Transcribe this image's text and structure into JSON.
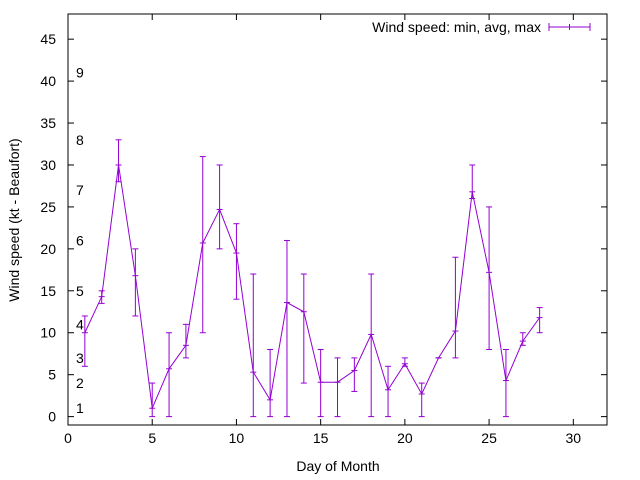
{
  "chart_data": {
    "type": "line",
    "xlabel": "Day of Month",
    "ylabel": "Wind speed (kt - Beaufort)",
    "xlim": [
      0,
      32
    ],
    "ylim": [
      -1,
      48
    ],
    "xticks": [
      0,
      5,
      10,
      15,
      20,
      25,
      30
    ],
    "yticks": [
      0,
      5,
      10,
      15,
      20,
      25,
      30,
      35,
      40,
      45
    ],
    "grid": false,
    "legend_position": "top-right",
    "series_color": "#9400d3",
    "beaufort_labels": [
      {
        "label": "1",
        "y": 1.0
      },
      {
        "label": "2",
        "y": 4.0
      },
      {
        "label": "3",
        "y": 7.0
      },
      {
        "label": "4",
        "y": 11.0
      },
      {
        "label": "5",
        "y": 15.0
      },
      {
        "label": "6",
        "y": 21.0
      },
      {
        "label": "7",
        "y": 27.0
      },
      {
        "label": "8",
        "y": 33.0
      },
      {
        "label": "9",
        "y": 41.0
      }
    ],
    "series": [
      {
        "name": "Wind speed: min, avg, max",
        "x": [
          1,
          2,
          3,
          4,
          5,
          6,
          7,
          8,
          9,
          10,
          11,
          12,
          13,
          14,
          15,
          16,
          17,
          18,
          19,
          20,
          21,
          22,
          23,
          24,
          25,
          26,
          27,
          28
        ],
        "avg": [
          10,
          14.3,
          30,
          16.8,
          1,
          5.7,
          8.5,
          20.7,
          24.7,
          19.5,
          5.3,
          2,
          13.6,
          12.5,
          4.1,
          4.1,
          5.5,
          9.8,
          3.2,
          6.3,
          2.7,
          7,
          10.2,
          26.8,
          17.2,
          4.3,
          9,
          11.8
        ],
        "min": [
          6,
          13.5,
          28,
          12,
          0,
          0,
          7,
          10,
          20,
          14,
          0,
          0,
          0,
          4,
          0,
          0,
          3,
          0,
          0,
          6,
          0,
          7,
          7,
          26,
          8,
          0,
          8.5,
          10
        ],
        "max": [
          12,
          15,
          33,
          20,
          4,
          10,
          11,
          31,
          30,
          23,
          17,
          8,
          21,
          17,
          8,
          7,
          7,
          17,
          6,
          7,
          4,
          7,
          19,
          30,
          25,
          8,
          10,
          13
        ]
      }
    ]
  }
}
